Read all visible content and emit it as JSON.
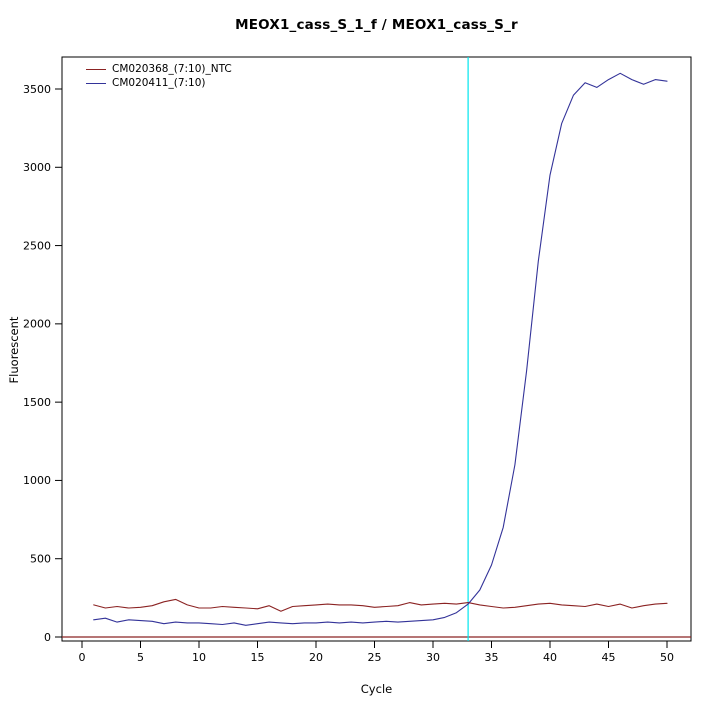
{
  "chart_data": {
    "type": "line",
    "title": "MEOX1_cass_S_1_f / MEOX1_cass_S_r",
    "xlabel": "Cycle",
    "ylabel": "Fluorescent",
    "xlim": [
      -1,
      52
    ],
    "ylim": [
      -90,
      3680
    ],
    "x_ticks": [
      0,
      5,
      10,
      15,
      20,
      25,
      30,
      35,
      40,
      45,
      50
    ],
    "y_ticks": [
      0,
      500,
      1000,
      1500,
      2000,
      2500,
      3000,
      3500
    ],
    "grid": false,
    "legend_position": "top-left",
    "background_color": "#ffffff",
    "box_color": "#000000",
    "threshold_line": {
      "y": 0,
      "color": "#8B2323"
    },
    "ct_line": {
      "x": 33,
      "color": "#00E5EE"
    },
    "x": [
      1,
      2,
      3,
      4,
      5,
      6,
      7,
      8,
      9,
      10,
      11,
      12,
      13,
      14,
      15,
      16,
      17,
      18,
      19,
      20,
      21,
      22,
      23,
      24,
      25,
      26,
      27,
      28,
      29,
      30,
      31,
      32,
      33,
      34,
      35,
      36,
      37,
      38,
      39,
      40,
      41,
      42,
      43,
      44,
      45,
      46,
      47,
      48,
      49,
      50
    ],
    "series": [
      {
        "name": "CM020368_(7:10)_NTC",
        "color": "#8B2323",
        "values": [
          205,
          185,
          195,
          185,
          190,
          200,
          225,
          240,
          205,
          185,
          185,
          195,
          190,
          185,
          180,
          200,
          165,
          195,
          200,
          205,
          210,
          205,
          205,
          200,
          190,
          195,
          200,
          220,
          205,
          210,
          215,
          210,
          220,
          205,
          195,
          185,
          190,
          200,
          210,
          215,
          205,
          200,
          195,
          210,
          195,
          210,
          185,
          200,
          210,
          215
        ]
      },
      {
        "name": "CM020411_(7:10)",
        "color": "#333399",
        "values": [
          110,
          120,
          95,
          110,
          105,
          100,
          85,
          95,
          90,
          90,
          85,
          80,
          90,
          75,
          85,
          95,
          90,
          85,
          90,
          90,
          95,
          90,
          95,
          90,
          95,
          100,
          95,
          100,
          105,
          110,
          125,
          155,
          210,
          300,
          460,
          700,
          1100,
          1700,
          2400,
          2950,
          3280,
          3460,
          3540,
          3510,
          3560,
          3600,
          3560,
          3530,
          3560,
          3550
        ]
      }
    ]
  }
}
